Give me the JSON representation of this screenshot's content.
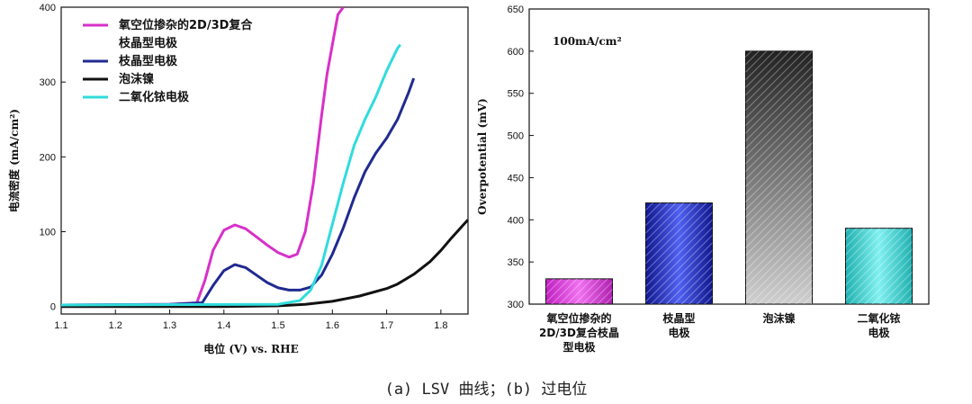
{
  "caption": "(a) LSV 曲线；(b) 过电位",
  "chart_data": [
    {
      "type": "line",
      "title": "",
      "xlabel": "电位 (V) vs. RHE",
      "ylabel": "电流密度 (mA/cm²)",
      "xlim": [
        1.1,
        1.85
      ],
      "ylim": [
        -10,
        400
      ],
      "xticks": [
        "1.1",
        "1.2",
        "1.3",
        "1.4",
        "1.5",
        "1.6",
        "1.7",
        "1.8"
      ],
      "yticks": [
        "0",
        "100",
        "200",
        "300",
        "400"
      ],
      "legend_position": "top-left",
      "series": [
        {
          "name": "氧空位掺杂的2D/3D复合\n枝晶型电极",
          "color": "#d830c8",
          "x": [
            1.1,
            1.3,
            1.35,
            1.365,
            1.38,
            1.4,
            1.42,
            1.44,
            1.46,
            1.48,
            1.5,
            1.52,
            1.535,
            1.55,
            1.565,
            1.58,
            1.59,
            1.6,
            1.61,
            1.62
          ],
          "y": [
            2,
            3,
            5,
            35,
            75,
            102,
            109,
            104,
            93,
            82,
            72,
            66,
            70,
            100,
            165,
            255,
            310,
            350,
            390,
            400
          ]
        },
        {
          "name": "枝晶型电极",
          "color": "#202a90",
          "x": [
            1.1,
            1.3,
            1.36,
            1.38,
            1.4,
            1.42,
            1.44,
            1.46,
            1.48,
            1.5,
            1.52,
            1.54,
            1.56,
            1.58,
            1.6,
            1.62,
            1.64,
            1.66,
            1.68,
            1.7,
            1.72,
            1.74,
            1.75
          ],
          "y": [
            2,
            3,
            5,
            28,
            48,
            56,
            52,
            42,
            32,
            25,
            22,
            22,
            26,
            42,
            70,
            105,
            145,
            180,
            205,
            225,
            250,
            285,
            305
          ]
        },
        {
          "name": "泡沫镍",
          "color": "#111111",
          "x": [
            1.1,
            1.4,
            1.5,
            1.55,
            1.6,
            1.65,
            1.7,
            1.72,
            1.75,
            1.78,
            1.8,
            1.82,
            1.85
          ],
          "y": [
            0,
            0,
            1,
            3,
            7,
            14,
            24,
            30,
            43,
            60,
            75,
            92,
            116
          ]
        },
        {
          "name": "二氧化铱电极",
          "color": "#30dcdc",
          "x": [
            1.1,
            1.5,
            1.54,
            1.56,
            1.58,
            1.6,
            1.62,
            1.64,
            1.66,
            1.68,
            1.7,
            1.71,
            1.72,
            1.725
          ],
          "y": [
            2,
            3,
            8,
            22,
            55,
            110,
            165,
            215,
            250,
            280,
            315,
            330,
            345,
            350
          ]
        }
      ]
    },
    {
      "type": "bar",
      "title": "",
      "annotation": "100mA/cm²",
      "xlabel": "",
      "ylabel": "Overpotential (mV)",
      "ylim": [
        300,
        650
      ],
      "yticks": [
        "300",
        "350",
        "400",
        "450",
        "500",
        "550",
        "600",
        "650"
      ],
      "categories": [
        "氧空位掺杂的\n2D/3D复合枝晶\n型电极",
        "枝晶型\n电极",
        "泡沫镍",
        "二氧化铱\n电极"
      ],
      "values": [
        330,
        420,
        600,
        390
      ],
      "colors": [
        "#e040e0",
        "#2a3ad8",
        "#8a8a8a",
        "#40d8d0"
      ]
    }
  ]
}
